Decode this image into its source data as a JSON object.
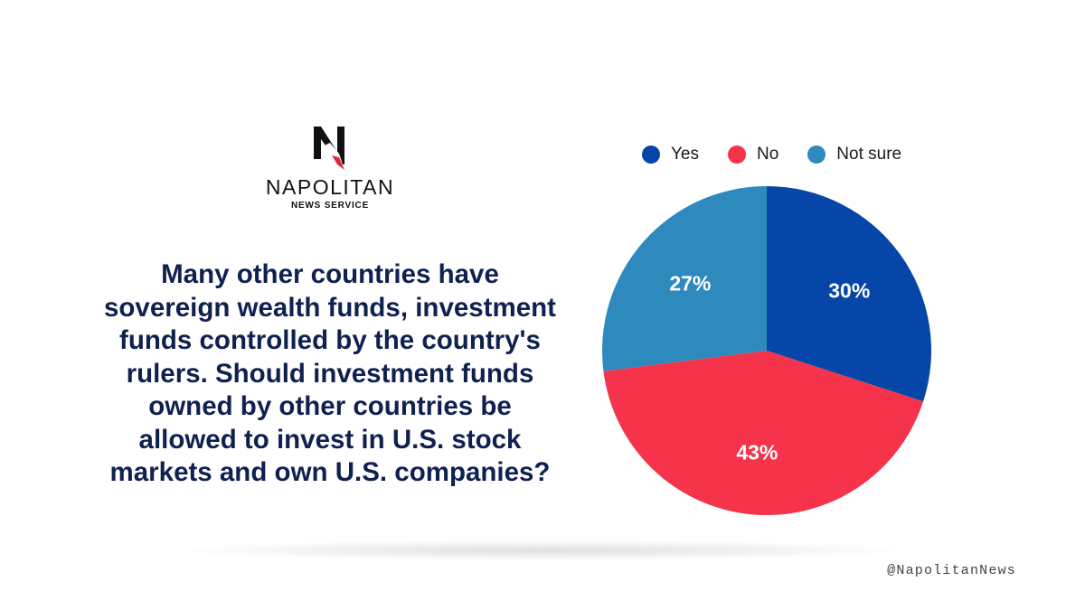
{
  "brand": {
    "name": "NAPOLITAN",
    "subtitle": "NEWS SERVICE",
    "logo_letter": "N",
    "handle": "@NapolitanNews"
  },
  "question": "Many other countries have sovereign wealth funds, investment funds controlled by the country's rulers. Should investment funds owned by other countries be allowed to invest in U.S. stock markets and own U.S. companies?",
  "colors": {
    "yes": "#0546a8",
    "no": "#f5334a",
    "not_sure": "#2e8abd",
    "question_text": "#0f2150"
  },
  "chart_data": {
    "type": "pie",
    "title": "",
    "legend_position": "top",
    "slices": [
      {
        "label": "Yes",
        "value": 30,
        "display": "30%",
        "color": "#0546a8"
      },
      {
        "label": "No",
        "value": 43,
        "display": "43%",
        "color": "#f5334a"
      },
      {
        "label": "Not sure",
        "value": 27,
        "display": "27%",
        "color": "#2e8abd"
      }
    ]
  }
}
